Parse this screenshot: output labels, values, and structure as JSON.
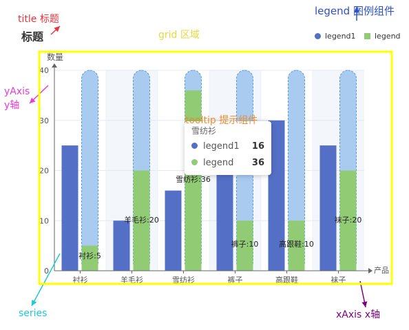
{
  "annotations": {
    "title_callout": "title 标题",
    "legend_callout": "legend 图例组件",
    "grid_callout": "grid 区域",
    "yaxis_callout_1": "yAxis",
    "yaxis_callout_2": "y轴",
    "series_callout": "series",
    "xaxis_callout": "xAxis x轴",
    "tooltip_callout": "tooltip 提示组件"
  },
  "chart_title": "标题",
  "legend": [
    {
      "name": "legend1",
      "color": "#5470c6"
    },
    {
      "name": "legend",
      "color": "#91cc75"
    }
  ],
  "tooltip": {
    "title": "雪纺衫",
    "rows": [
      {
        "name": "legend1",
        "value": "16",
        "color": "#5470c6"
      },
      {
        "name": "legend",
        "value": "36",
        "color": "#91cc75"
      }
    ]
  },
  "colors": {
    "legend1": "#5470c6",
    "legend": "#91cc75",
    "background_bar": "#a9cbf0",
    "background_bar_border": "#5b9bd5",
    "grid_highlight": "#ffff00",
    "title_callout": "#e8343e",
    "legend_callout": "#2d52c8",
    "grid_callout": "#e6d93a",
    "yaxis_callout": "#e83ad8",
    "series_callout": "#1ec9d6",
    "xaxis_callout": "#800080",
    "tooltip_callout": "#f08c2a"
  },
  "chart_data": {
    "type": "bar",
    "title": "标题",
    "categories": [
      "衬衫",
      "羊毛衫",
      "雪纺衫",
      "裤子",
      "高跟鞋",
      "袜子"
    ],
    "xlabel": "产品",
    "ylabel": "数量",
    "ylim": [
      0,
      40
    ],
    "yticks": [
      0,
      10,
      20,
      30,
      40
    ],
    "grid": true,
    "legend_position": "top-right",
    "series": [
      {
        "name": "legend1",
        "values": [
          25,
          10,
          16,
          20,
          30,
          25
        ]
      },
      {
        "name": "legend",
        "values": [
          5,
          20,
          36,
          10,
          10,
          20
        ],
        "background_max": 40
      }
    ],
    "data_labels": [
      "衬衫:5",
      "羊毛衫:20",
      "雪纺衫:36",
      "裤子:10",
      "高跟鞋:10",
      "袜子:20"
    ]
  }
}
